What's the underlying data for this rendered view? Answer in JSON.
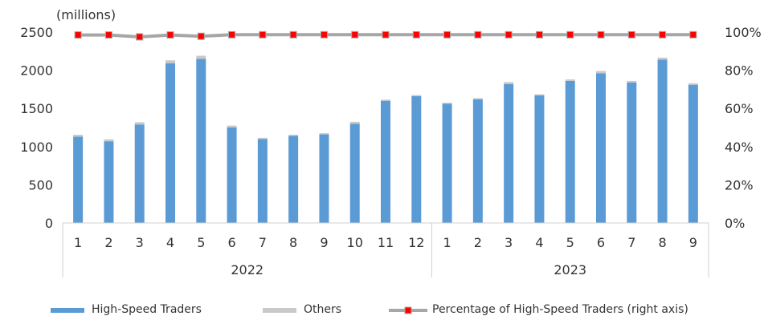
{
  "chart_data": {
    "type": "bar",
    "unit_label": "(millions)",
    "categories": [
      "1",
      "2",
      "3",
      "4",
      "5",
      "6",
      "7",
      "8",
      "9",
      "10",
      "11",
      "12",
      "1",
      "2",
      "3",
      "4",
      "5",
      "6",
      "7",
      "8",
      "9"
    ],
    "groups": [
      {
        "label": "2022",
        "count": 12
      },
      {
        "label": "2023",
        "count": 9
      }
    ],
    "series": [
      {
        "name": "High-Speed Traders",
        "type": "bar",
        "axis": "left",
        "color": "#5b9bd5",
        "values": [
          1130,
          1070,
          1290,
          2090,
          2150,
          1250,
          1100,
          1140,
          1160,
          1300,
          1600,
          1660,
          1560,
          1620,
          1820,
          1670,
          1860,
          1960,
          1840,
          2140,
          1810
        ]
      },
      {
        "name": "Others",
        "type": "bar",
        "stacked": true,
        "axis": "left",
        "color": "#c9c9c9",
        "values": [
          25,
          25,
          30,
          40,
          40,
          25,
          15,
          15,
          15,
          25,
          15,
          15,
          15,
          15,
          25,
          15,
          20,
          30,
          20,
          25,
          20
        ]
      },
      {
        "name": "Percentage of High-Speed Traders (right axis)",
        "type": "line",
        "axis": "right",
        "color": "#a6a6a6",
        "marker_color": "#ff0000",
        "values": [
          98.5,
          98.5,
          97.5,
          98.5,
          97.8,
          98.6,
          98.6,
          98.6,
          98.6,
          98.6,
          98.6,
          98.6,
          98.6,
          98.6,
          98.6,
          98.6,
          98.6,
          98.6,
          98.6,
          98.6,
          98.6
        ]
      }
    ],
    "y_left": {
      "min": 0,
      "max": 2500,
      "ticks": [
        "0",
        "500",
        "1000",
        "1500",
        "2000",
        "2500"
      ]
    },
    "y_right": {
      "min": 0,
      "max": 100,
      "ticks": [
        "0%",
        "20%",
        "40%",
        "60%",
        "80%",
        "100%"
      ]
    },
    "grid": false,
    "legend_position": "bottom"
  }
}
